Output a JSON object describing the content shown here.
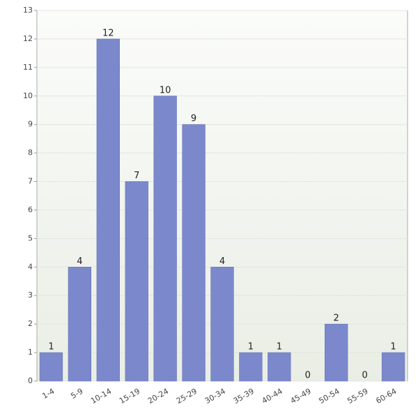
{
  "chart_data": {
    "type": "bar",
    "categories": [
      "1-4",
      "5-9",
      "10-14",
      "15-19",
      "20-24",
      "25-29",
      "30-34",
      "35-39",
      "40-44",
      "45-49",
      "50-54",
      "55-59",
      "60-64"
    ],
    "values": [
      1,
      4,
      12,
      7,
      10,
      9,
      4,
      1,
      1,
      0,
      2,
      0,
      1
    ],
    "color": "#7b88cc",
    "ylim": [
      0,
      13
    ],
    "yticks": [
      0,
      1,
      2,
      3,
      4,
      5,
      6,
      7,
      8,
      9,
      10,
      11,
      12,
      13
    ],
    "grid": true
  }
}
